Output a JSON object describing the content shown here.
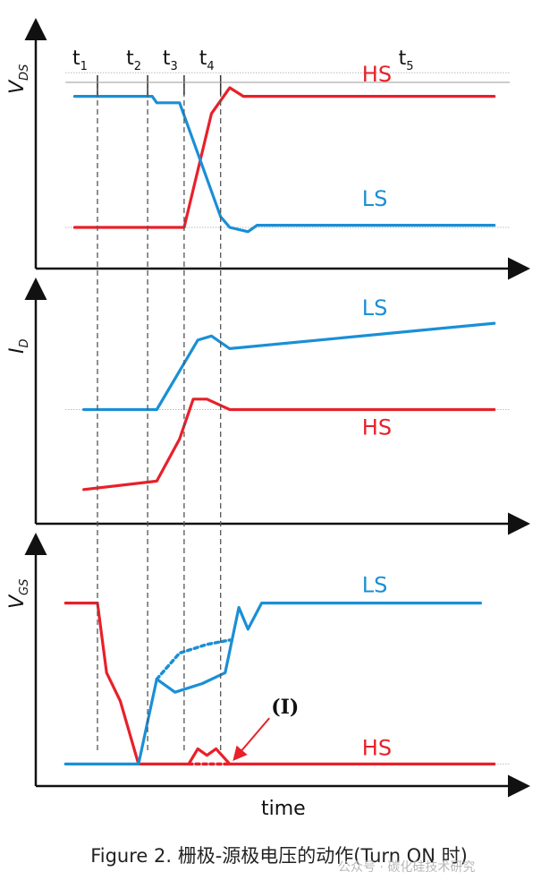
{
  "caption": "Figure 2. 栅极-源极电压的动作(Turn ON 时)",
  "watermark": "公众号 · 碳化硅技术研究",
  "colors": {
    "hs": "#e8202a",
    "ls": "#1a8fd6",
    "axis": "#111111",
    "guide": "#555555"
  },
  "chart_data": {
    "type": "line",
    "xlabel": "time",
    "time_markers": [
      {
        "label": "t",
        "sub": "1",
        "x": 1.0
      },
      {
        "label": "t",
        "sub": "2",
        "x": 2.1
      },
      {
        "label": "t",
        "sub": "3",
        "x": 2.9
      },
      {
        "label": "t",
        "sub": "4",
        "x": 3.7
      },
      {
        "label": "t",
        "sub": "5",
        "x": 7.6
      }
    ],
    "x_range": [
      0,
      10
    ],
    "panels": [
      {
        "ylabel": "V",
        "ysub": "DS",
        "ylim": [
          0,
          10
        ],
        "series": [
          {
            "name": "HS",
            "color_key": "hs",
            "points": [
              [
                0.5,
                1.5
              ],
              [
                2.9,
                1.5
              ],
              [
                3.5,
                6.8
              ],
              [
                3.9,
                8.0
              ],
              [
                4.2,
                7.6
              ],
              [
                9.7,
                7.6
              ]
            ]
          },
          {
            "name": "LS",
            "color_key": "ls",
            "points": [
              [
                0.5,
                7.6
              ],
              [
                2.2,
                7.6
              ],
              [
                2.3,
                7.3
              ],
              [
                2.8,
                7.3
              ],
              [
                3.7,
                2.0
              ],
              [
                3.9,
                1.5
              ],
              [
                4.3,
                1.3
              ],
              [
                4.5,
                1.6
              ],
              [
                9.7,
                1.6
              ]
            ]
          }
        ],
        "labels": [
          {
            "text": "HS",
            "x": 6.8,
            "y": 8.3,
            "color_key": "hs"
          },
          {
            "text": "LS",
            "x": 6.8,
            "y": 2.5,
            "color_key": "ls"
          }
        ],
        "dotted_levels": [
          1.5,
          8.7
        ]
      },
      {
        "ylabel": "I",
        "ysub": "D",
        "ylim": [
          0,
          10
        ],
        "series": [
          {
            "name": "LS",
            "color_key": "ls",
            "points": [
              [
                0.7,
                5.0
              ],
              [
                2.3,
                5.0
              ],
              [
                3.2,
                8.3
              ],
              [
                3.5,
                8.5
              ],
              [
                3.9,
                7.9
              ],
              [
                9.7,
                9.1
              ]
            ]
          },
          {
            "name": "HS",
            "color_key": "hs",
            "points": [
              [
                0.7,
                1.2
              ],
              [
                2.3,
                1.6
              ],
              [
                2.8,
                3.6
              ],
              [
                3.1,
                5.5
              ],
              [
                3.4,
                5.5
              ],
              [
                3.9,
                5.0
              ],
              [
                9.7,
                5.0
              ]
            ]
          }
        ],
        "labels": [
          {
            "text": "LS",
            "x": 6.8,
            "y": 9.5,
            "color_key": "ls"
          },
          {
            "text": "HS",
            "x": 6.8,
            "y": 3.8,
            "color_key": "hs"
          }
        ],
        "dotted_levels": [
          5.0
        ]
      },
      {
        "ylabel": "V",
        "ysub": "GS",
        "ylim": [
          0,
          10
        ],
        "series": [
          {
            "name": "HS",
            "color_key": "hs",
            "points": [
              [
                0.3,
                8.0
              ],
              [
                1.0,
                8.0
              ],
              [
                1.2,
                4.8
              ],
              [
                1.5,
                3.5
              ],
              [
                1.9,
                0.6
              ],
              [
                3.0,
                0.6
              ],
              [
                3.2,
                1.3
              ],
              [
                3.4,
                1.0
              ],
              [
                3.6,
                1.3
              ],
              [
                3.9,
                0.6
              ],
              [
                9.7,
                0.6
              ]
            ]
          },
          {
            "name": "LS",
            "color_key": "ls",
            "points": [
              [
                0.3,
                0.6
              ],
              [
                1.9,
                0.6
              ],
              [
                2.3,
                4.5
              ],
              [
                2.7,
                3.9
              ],
              [
                3.3,
                4.3
              ],
              [
                3.8,
                4.8
              ],
              [
                4.1,
                7.8
              ],
              [
                4.3,
                6.8
              ],
              [
                4.6,
                8.0
              ],
              [
                9.4,
                8.0
              ]
            ]
          },
          {
            "name": "LS",
            "color_key": "ls",
            "dotted": true,
            "points": [
              [
                2.3,
                4.5
              ],
              [
                2.8,
                5.7
              ],
              [
                3.4,
                6.1
              ],
              [
                3.9,
                6.3
              ]
            ]
          },
          {
            "name": "HS",
            "color_key": "hs",
            "dotted": true,
            "points": [
              [
                3.0,
                0.6
              ],
              [
                3.9,
                0.6
              ]
            ]
          }
        ],
        "labels": [
          {
            "text": "LS",
            "x": 6.8,
            "y": 8.5,
            "color_key": "ls"
          },
          {
            "text": "HS",
            "x": 6.8,
            "y": 1.0,
            "color_key": "hs"
          }
        ],
        "annotation": {
          "text": "(I)",
          "x": 5.2,
          "y": 2.3,
          "arrow_to": [
            3.9,
            0.7
          ]
        },
        "dotted_levels": [
          0.6
        ]
      }
    ]
  }
}
